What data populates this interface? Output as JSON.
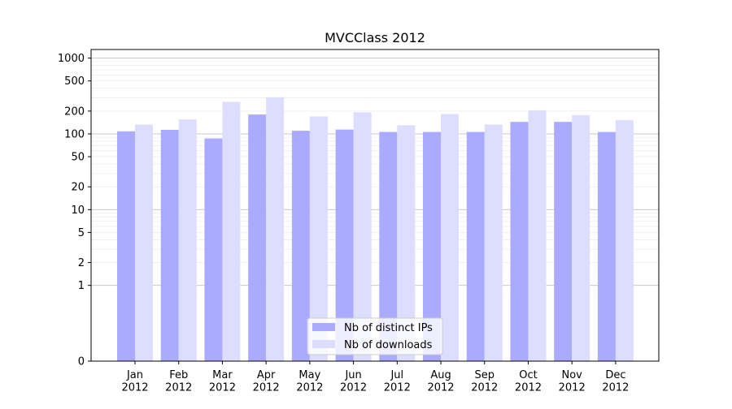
{
  "chart_data": {
    "type": "bar",
    "title": "MVCClass 2012",
    "xlabel": "",
    "ylabel": "",
    "yscale": "symlog",
    "ylim": [
      0,
      1300
    ],
    "yticks": [
      0,
      1,
      2,
      5,
      10,
      20,
      50,
      100,
      200,
      500,
      1000
    ],
    "grid": true,
    "legend_position": "bottom-center",
    "categories": [
      "Jan\n2012",
      "Feb\n2012",
      "Mar\n2012",
      "Apr\n2012",
      "May\n2012",
      "Jun\n2012",
      "Jul\n2012",
      "Aug\n2012",
      "Sep\n2012",
      "Oct\n2012",
      "Nov\n2012",
      "Dec\n2012"
    ],
    "series": [
      {
        "name": "Nb of distinct IPs",
        "color": "#aaaaff",
        "values": [
          108,
          113,
          87,
          180,
          110,
          114,
          106,
          106,
          106,
          144,
          144,
          106
        ]
      },
      {
        "name": "Nb of downloads",
        "color": "#ddddff",
        "values": [
          133,
          155,
          265,
          305,
          170,
          193,
          130,
          183,
          133,
          205,
          177,
          152
        ]
      }
    ]
  }
}
